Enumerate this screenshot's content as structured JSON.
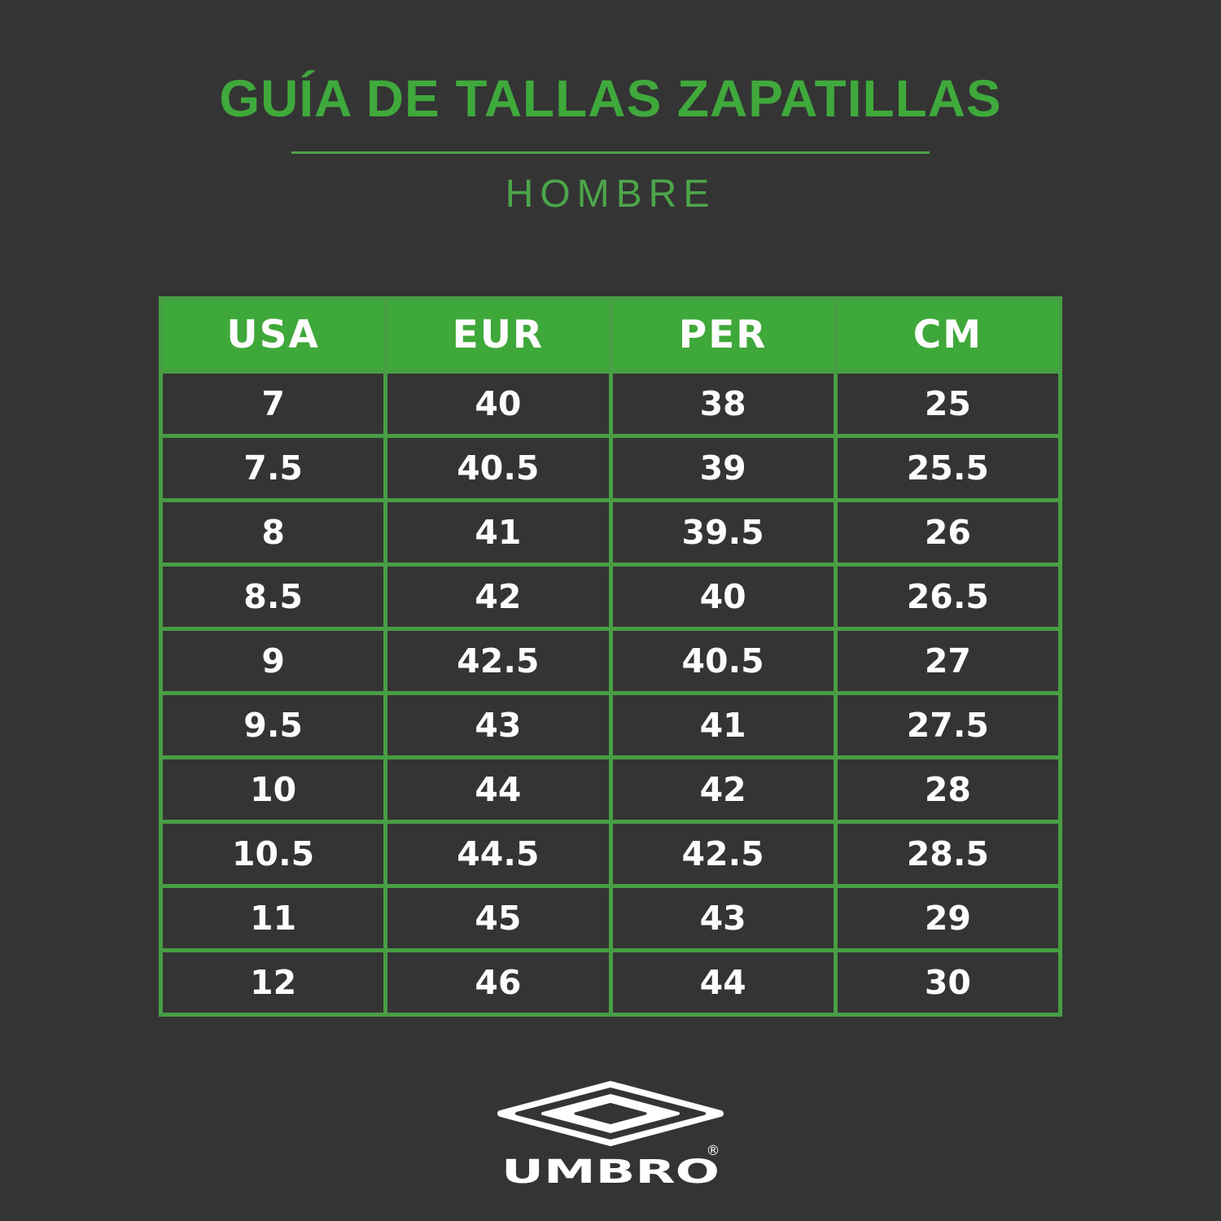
{
  "page": {
    "background": "#343434"
  },
  "header": {
    "title": "GUÍA DE TALLAS ZAPATILLAS",
    "subtitle": "HOMBRE"
  },
  "chart_data": {
    "type": "table",
    "title": "GUÍA DE TALLAS ZAPATILLAS",
    "subtitle": "HOMBRE",
    "columns": [
      "USA",
      "EUR",
      "PER",
      "CM"
    ],
    "rows": [
      [
        "7",
        "40",
        "38",
        "25"
      ],
      [
        "7.5",
        "40.5",
        "39",
        "25.5"
      ],
      [
        "8",
        "41",
        "39.5",
        "26"
      ],
      [
        "8.5",
        "42",
        "40",
        "26.5"
      ],
      [
        "9",
        "42.5",
        "40.5",
        "27"
      ],
      [
        "9.5",
        "43",
        "41",
        "27.5"
      ],
      [
        "10",
        "44",
        "42",
        "28"
      ],
      [
        "10.5",
        "44.5",
        "42.5",
        "28.5"
      ],
      [
        "11",
        "45",
        "43",
        "29"
      ],
      [
        "12",
        "46",
        "44",
        "30"
      ]
    ],
    "legend_position": "none",
    "grid": true
  },
  "footer": {
    "brand": "UMBRO",
    "registered_mark": "®",
    "logo_icon": "umbro-double-diamond-icon"
  },
  "colors": {
    "background": "#343434",
    "title_green": "#3FA93C",
    "subtitle_green": "#4CA64A",
    "header_green": "#3FA83A",
    "border_green": "#479E43",
    "text_white": "#FDFDFD",
    "logo_white": "#FFFFFF"
  }
}
